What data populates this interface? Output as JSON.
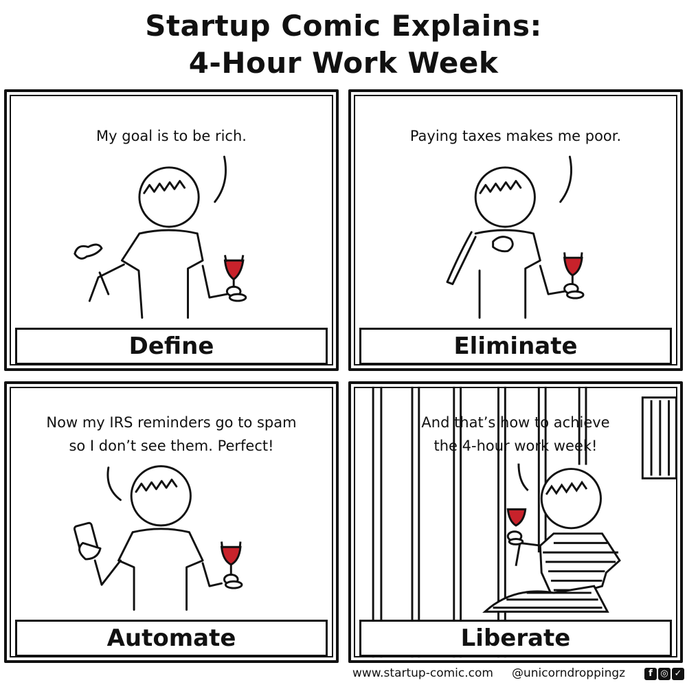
{
  "title": {
    "line1": "Startup Comic Explains:",
    "line2": "4-Hour Work Week"
  },
  "panels": [
    {
      "speech": [
        "My goal is to be rich."
      ],
      "caption": "Define"
    },
    {
      "speech": [
        "Paying taxes makes me poor."
      ],
      "caption": "Eliminate"
    },
    {
      "speech": [
        "Now my IRS reminders go to spam",
        "so I don’t see them. Perfect!"
      ],
      "caption": "Automate"
    },
    {
      "speech": [
        "And that’s how to achieve",
        "the 4-hour work week!"
      ],
      "caption": "Liberate"
    }
  ],
  "footer": {
    "site": "www.startup-comic.com",
    "handle": "@unicorndroppingz",
    "social_icons": [
      "facebook-icon",
      "instagram-icon",
      "twitter-icon"
    ]
  },
  "colors": {
    "wine": "#c8222b",
    "ink": "#111111",
    "background": "#ffffff"
  }
}
